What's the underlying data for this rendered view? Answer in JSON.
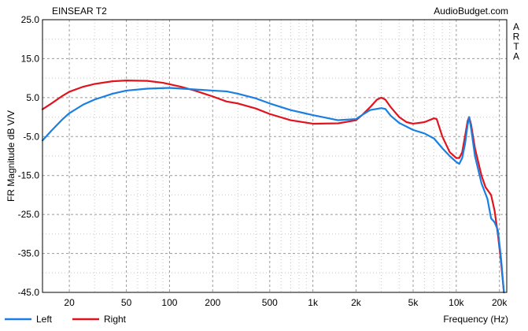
{
  "chart_data": {
    "type": "line",
    "title": "EINSEAR T2",
    "watermark": "AudioBudget.com",
    "side_label": "ARTA",
    "xlabel": "Frequency (Hz)",
    "ylabel": "FR Magnitude dB V/V",
    "x_scale": "log",
    "xlim": [
      13,
      22500
    ],
    "ylim": [
      -45,
      25
    ],
    "y_ticks": [
      25,
      15,
      5,
      -5,
      -15,
      -25,
      -35,
      -45
    ],
    "y_tick_labels": [
      "25.0",
      "15.0",
      "5.0",
      "-5.0",
      "-15.0",
      "-25.0",
      "-35.0",
      "-45.0"
    ],
    "x_ticks": [
      20,
      50,
      100,
      200,
      500,
      1000,
      2000,
      5000,
      10000,
      20000
    ],
    "x_tick_labels": [
      "20",
      "50",
      "100",
      "200",
      "500",
      "1k",
      "2k",
      "5k",
      "10k",
      "20k"
    ],
    "grid": true,
    "legend": "bottom-left",
    "series": [
      {
        "name": "Left",
        "color": "#1a7fe0",
        "points": [
          [
            13,
            -6
          ],
          [
            15,
            -3.5
          ],
          [
            18,
            -0.5
          ],
          [
            20,
            1
          ],
          [
            25,
            3.2
          ],
          [
            30,
            4.5
          ],
          [
            40,
            6
          ],
          [
            50,
            6.8
          ],
          [
            70,
            7.3
          ],
          [
            100,
            7.5
          ],
          [
            150,
            7.1
          ],
          [
            200,
            6.8
          ],
          [
            250,
            6.6
          ],
          [
            300,
            6
          ],
          [
            400,
            4.8
          ],
          [
            500,
            3.5
          ],
          [
            700,
            1.8
          ],
          [
            1000,
            0.5
          ],
          [
            1500,
            -0.8
          ],
          [
            2000,
            -0.5
          ],
          [
            2200,
            0.5
          ],
          [
            2500,
            1.8
          ],
          [
            3000,
            2.3
          ],
          [
            3200,
            2.1
          ],
          [
            3500,
            0.3
          ],
          [
            4000,
            -1.5
          ],
          [
            5000,
            -3.3
          ],
          [
            6000,
            -4.2
          ],
          [
            7000,
            -5.5
          ],
          [
            8000,
            -8
          ],
          [
            9000,
            -10
          ],
          [
            10000,
            -11.5
          ],
          [
            10500,
            -12
          ],
          [
            11000,
            -10.5
          ],
          [
            11500,
            -7
          ],
          [
            12000,
            -2
          ],
          [
            12300,
            0
          ],
          [
            12700,
            -3
          ],
          [
            13500,
            -10
          ],
          [
            15000,
            -17
          ],
          [
            16500,
            -21
          ],
          [
            17500,
            -26
          ],
          [
            18500,
            -27
          ],
          [
            19500,
            -29
          ],
          [
            20500,
            -36
          ],
          [
            21500,
            -45
          ]
        ]
      },
      {
        "name": "Right",
        "color": "#e0141e",
        "points": [
          [
            13,
            2
          ],
          [
            15,
            3.5
          ],
          [
            18,
            5.5
          ],
          [
            20,
            6.5
          ],
          [
            25,
            7.8
          ],
          [
            30,
            8.5
          ],
          [
            40,
            9.2
          ],
          [
            50,
            9.4
          ],
          [
            70,
            9.3
          ],
          [
            90,
            8.8
          ],
          [
            120,
            7.8
          ],
          [
            150,
            6.8
          ],
          [
            200,
            5.3
          ],
          [
            250,
            4
          ],
          [
            300,
            3.5
          ],
          [
            400,
            2.2
          ],
          [
            500,
            0.8
          ],
          [
            700,
            -0.8
          ],
          [
            1000,
            -1.7
          ],
          [
            1500,
            -1.6
          ],
          [
            2000,
            -0.8
          ],
          [
            2200,
            0.5
          ],
          [
            2500,
            2.5
          ],
          [
            2800,
            4.5
          ],
          [
            3000,
            5
          ],
          [
            3200,
            4.5
          ],
          [
            3500,
            2.5
          ],
          [
            4000,
            0
          ],
          [
            4500,
            -1.3
          ],
          [
            5000,
            -1.7
          ],
          [
            6000,
            -1.3
          ],
          [
            7000,
            -0.3
          ],
          [
            7300,
            -0.5
          ],
          [
            8000,
            -5
          ],
          [
            9000,
            -9
          ],
          [
            10000,
            -10.5
          ],
          [
            10500,
            -10.5
          ],
          [
            11000,
            -9
          ],
          [
            11500,
            -5
          ],
          [
            12000,
            -1
          ],
          [
            12300,
            0
          ],
          [
            12700,
            -2
          ],
          [
            13500,
            -8
          ],
          [
            15000,
            -15
          ],
          [
            16000,
            -18
          ],
          [
            17500,
            -20
          ],
          [
            18500,
            -24
          ],
          [
            19500,
            -30
          ],
          [
            20500,
            -37
          ],
          [
            21500,
            -45
          ]
        ]
      }
    ]
  }
}
